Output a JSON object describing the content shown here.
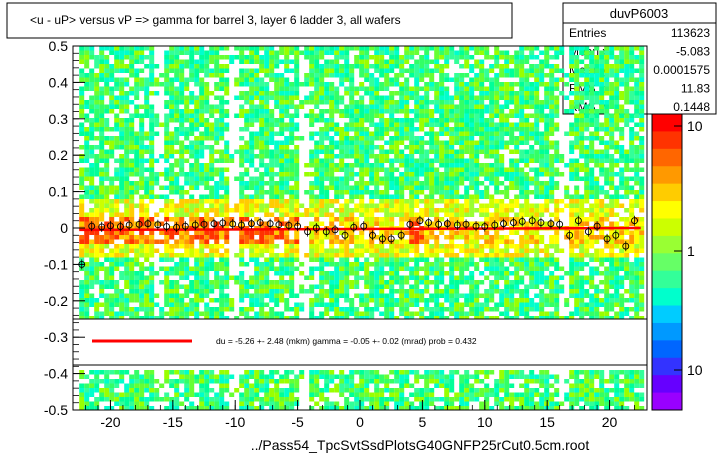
{
  "chart_data": {
    "type": "heatmap",
    "title": "<u - uP>       versus   vP =>  gamma for barrel 3, layer 6 ladder 3, all wafers",
    "xlabel": "../Pass54_TpcSvtSsdPlotsG40GNFP25rCut0.5cm.root",
    "ylabel": "",
    "xlim": [
      -23,
      23
    ],
    "ylim": [
      -0.5,
      0.5
    ],
    "x_ticks": [
      -20,
      -15,
      -10,
      -5,
      0,
      5,
      10,
      15,
      20
    ],
    "y_ticks": [
      -0.5,
      -0.4,
      -0.3,
      -0.2,
      -0.1,
      0,
      0.1,
      0.2,
      0.3,
      0.4,
      0.5
    ],
    "x_tick_labels": [
      "-20",
      "-15",
      "-10",
      "-5",
      "0",
      "5",
      "10",
      "15",
      "20"
    ],
    "y_tick_labels": [
      "-0.5",
      "-0.4",
      "-0.3",
      "-0.2",
      "-0.1",
      "0",
      "0.1",
      "0.2",
      "0.3",
      "0.4",
      "0.5"
    ],
    "colorbar": {
      "scale": "log",
      "labels": [
        "10",
        "1",
        "10"
      ],
      "colors": [
        "#ff0000",
        "#ff3300",
        "#ff6600",
        "#ff9900",
        "#ffcc00",
        "#ffff00",
        "#ccff00",
        "#99ff33",
        "#66ff66",
        "#33ff99",
        "#00ffcc",
        "#00ccff",
        "#0099ff",
        "#0066ff",
        "#3333ff",
        "#6600ff",
        "#9900ff"
      ]
    },
    "stats": {
      "name": "duvP6003",
      "rows": [
        {
          "label": "Entries",
          "value": "113623"
        },
        {
          "label": "Mean x",
          "value": "-5.083"
        },
        {
          "label": "Mean y",
          "value": "0.0001575"
        },
        {
          "label": "RMS x",
          "value": "11.83"
        },
        {
          "label": "RMS y",
          "value": "0.1448"
        }
      ]
    },
    "fit_legend": "du =    -5.26 +-  2.48 (mkm) gamma =    -0.05 +-  0.02 (mrad) prob = 0.432",
    "fit_line": {
      "x0": -22.5,
      "x1": 22.5,
      "y0": -0.00526,
      "y1": 0.0
    },
    "profile_points": [
      {
        "x": -22.3,
        "y": -0.1
      },
      {
        "x": -21.5,
        "y": 0.005
      },
      {
        "x": -20.7,
        "y": 0.003
      },
      {
        "x": -20.0,
        "y": 0.006
      },
      {
        "x": -19.2,
        "y": 0.004
      },
      {
        "x": -18.5,
        "y": 0.008
      },
      {
        "x": -17.7,
        "y": 0.01
      },
      {
        "x": -17.0,
        "y": 0.012
      },
      {
        "x": -16.2,
        "y": 0.009
      },
      {
        "x": -15.5,
        "y": 0.004
      },
      {
        "x": -14.7,
        "y": 0.002
      },
      {
        "x": -14.0,
        "y": 0.005
      },
      {
        "x": -13.2,
        "y": 0.008
      },
      {
        "x": -12.5,
        "y": 0.01
      },
      {
        "x": -11.7,
        "y": 0.012
      },
      {
        "x": -11.0,
        "y": 0.014
      },
      {
        "x": -10.2,
        "y": 0.011
      },
      {
        "x": -9.5,
        "y": 0.008
      },
      {
        "x": -8.7,
        "y": 0.012
      },
      {
        "x": -8.0,
        "y": 0.015
      },
      {
        "x": -7.2,
        "y": 0.012
      },
      {
        "x": -6.5,
        "y": 0.009
      },
      {
        "x": -5.7,
        "y": 0.007
      },
      {
        "x": -5.0,
        "y": 0.005
      },
      {
        "x": -4.2,
        "y": -0.01
      },
      {
        "x": -3.5,
        "y": 0.0
      },
      {
        "x": -2.7,
        "y": -0.01
      },
      {
        "x": -2.0,
        "y": -0.005
      },
      {
        "x": -1.2,
        "y": -0.02
      },
      {
        "x": -0.5,
        "y": 0.002
      },
      {
        "x": 0.3,
        "y": 0.005
      },
      {
        "x": 1.0,
        "y": -0.02
      },
      {
        "x": 1.8,
        "y": -0.03
      },
      {
        "x": 2.5,
        "y": -0.03
      },
      {
        "x": 3.3,
        "y": -0.02
      },
      {
        "x": 4.0,
        "y": 0.01
      },
      {
        "x": 4.8,
        "y": 0.02
      },
      {
        "x": 5.5,
        "y": 0.015
      },
      {
        "x": 6.3,
        "y": 0.01
      },
      {
        "x": 7.0,
        "y": 0.012
      },
      {
        "x": 7.8,
        "y": 0.008
      },
      {
        "x": 8.5,
        "y": 0.01
      },
      {
        "x": 9.3,
        "y": 0.005
      },
      {
        "x": 10.0,
        "y": 0.004
      },
      {
        "x": 10.8,
        "y": 0.008
      },
      {
        "x": 11.5,
        "y": 0.012
      },
      {
        "x": 12.3,
        "y": 0.015
      },
      {
        "x": 13.0,
        "y": 0.018
      },
      {
        "x": 13.8,
        "y": 0.02
      },
      {
        "x": 14.5,
        "y": 0.015
      },
      {
        "x": 15.3,
        "y": 0.012
      },
      {
        "x": 16.0,
        "y": 0.01
      },
      {
        "x": 16.8,
        "y": -0.02
      },
      {
        "x": 17.5,
        "y": 0.02
      },
      {
        "x": 18.3,
        "y": -0.01
      },
      {
        "x": 19.0,
        "y": 0.005
      },
      {
        "x": 19.8,
        "y": -0.03
      },
      {
        "x": 20.5,
        "y": -0.02
      },
      {
        "x": 21.3,
        "y": -0.05
      },
      {
        "x": 22.0,
        "y": 0.02
      }
    ]
  }
}
